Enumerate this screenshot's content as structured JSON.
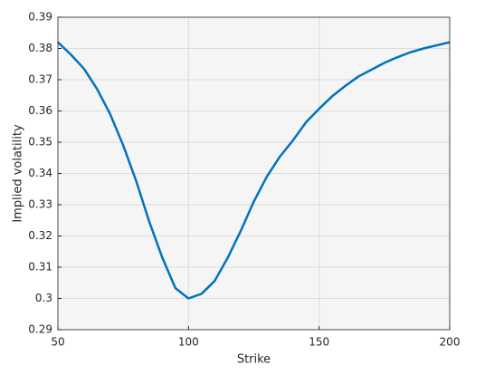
{
  "chart_data": {
    "type": "line",
    "x_label": "Strike",
    "y_label": "Implied volatility",
    "x": [
      50,
      55,
      60,
      65,
      70,
      75,
      80,
      85,
      90,
      95,
      100,
      105,
      110,
      115,
      120,
      125,
      130,
      135,
      140,
      145,
      150,
      155,
      160,
      165,
      170,
      175,
      180,
      185,
      190,
      195,
      200
    ],
    "series": [
      {
        "color": "#0072bd",
        "values": [
          0.382,
          0.378,
          0.3735,
          0.367,
          0.359,
          0.349,
          0.3375,
          0.3245,
          0.313,
          0.3033,
          0.3,
          0.3015,
          0.3056,
          0.313,
          0.3216,
          0.331,
          0.339,
          0.3454,
          0.3506,
          0.3564,
          0.3607,
          0.3647,
          0.368,
          0.371,
          0.3732,
          0.3754,
          0.3772,
          0.3788,
          0.38,
          0.381,
          0.382
        ]
      }
    ],
    "xlim": [
      50,
      200
    ],
    "xticks": [
      50,
      100,
      150,
      200
    ],
    "ylim": [
      0.29,
      0.39
    ],
    "yticks": [
      0.29,
      0.3,
      0.31,
      0.32,
      0.33,
      0.34,
      0.35,
      0.36,
      0.37,
      0.38,
      0.39
    ],
    "grid": true
  }
}
